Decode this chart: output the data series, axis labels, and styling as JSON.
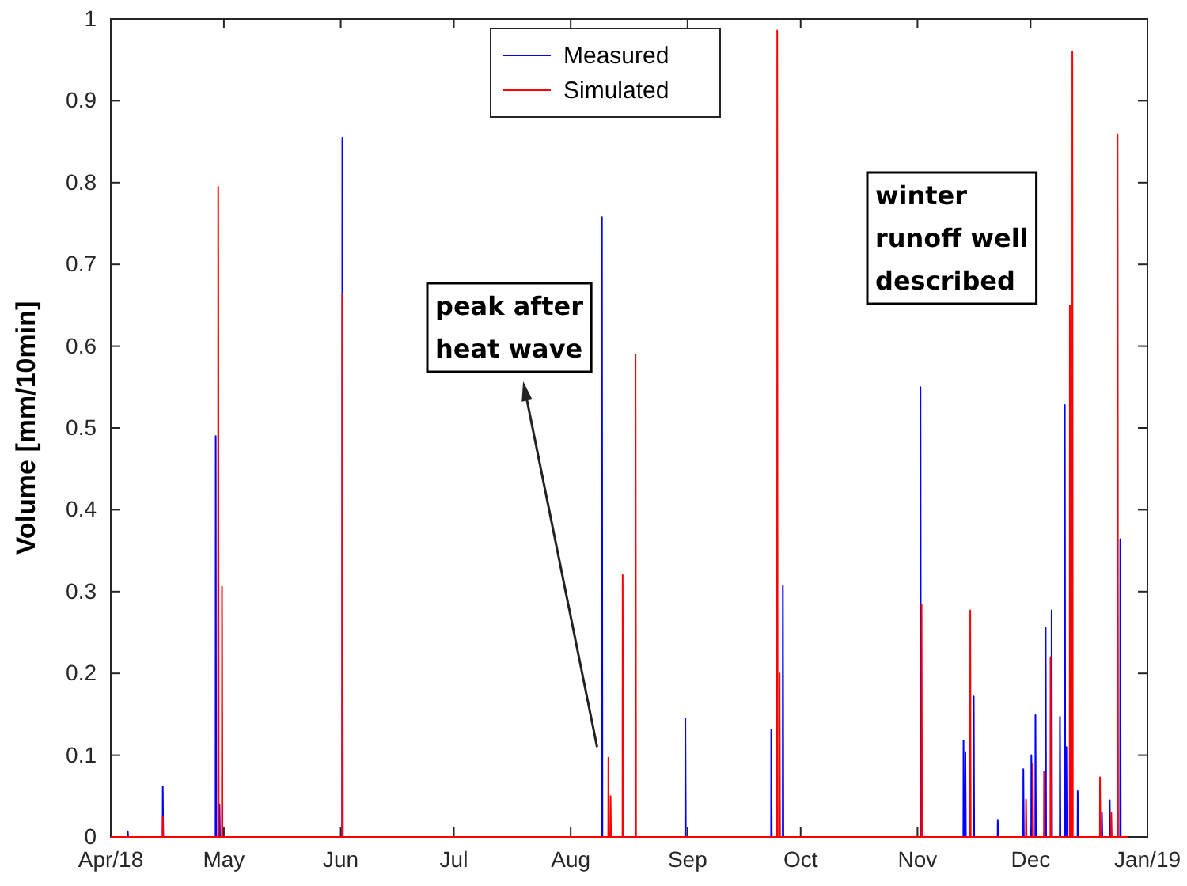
{
  "chart_data": {
    "type": "line",
    "ylabel": "Volume [mm/10min]",
    "xlim": [
      "2018-04-01",
      "2019-01-01"
    ],
    "xticks": [
      {
        "value": "2018-04-01",
        "label": "Apr/18"
      },
      {
        "value": "2018-05-01",
        "label": "May"
      },
      {
        "value": "2018-06-01",
        "label": "Jun"
      },
      {
        "value": "2018-07-01",
        "label": "Jul"
      },
      {
        "value": "2018-08-01",
        "label": "Aug"
      },
      {
        "value": "2018-09-01",
        "label": "Sep"
      },
      {
        "value": "2018-10-01",
        "label": "Oct"
      },
      {
        "value": "2018-11-01",
        "label": "Nov"
      },
      {
        "value": "2018-12-01",
        "label": "Dec"
      },
      {
        "value": "2019-01-01",
        "label": "Jan/19"
      }
    ],
    "ylim": [
      0,
      1
    ],
    "yticks": [
      0,
      0.1,
      0.2,
      0.3,
      0.4,
      0.5,
      0.6,
      0.7,
      0.8,
      0.9,
      1
    ],
    "grid": false,
    "legend": "top",
    "line_style": "solid",
    "marker": "none",
    "series": [
      {
        "name": "Measured",
        "color": "#0000ff",
        "x": [
          "2018-04-01T00:00",
          "2018-04-05T11:00",
          "2018-04-05T12:00",
          "2018-04-05T15:00",
          "2018-04-14T18:00",
          "2018-04-14T19:00",
          "2018-04-14T22:00",
          "2018-04-28T19:00",
          "2018-04-28T20:00",
          "2018-04-28T23:00",
          "2018-04-29T19:00",
          "2018-04-29T20:00",
          "2018-04-29T23:00",
          "2018-06-01T09:00",
          "2018-06-01T10:00",
          "2018-06-01T13:00",
          "2018-08-09T06:00",
          "2018-08-09T07:00",
          "2018-08-09T10:00",
          "2018-08-31T09:00",
          "2018-08-31T10:00",
          "2018-08-31T13:00",
          "2018-09-23T04:00",
          "2018-09-23T05:00",
          "2018-09-23T08:00",
          "2018-09-26T06:00",
          "2018-09-26T07:00",
          "2018-09-26T10:00",
          "2018-11-01T18:00",
          "2018-11-01T19:00",
          "2018-11-01T22:00",
          "2018-11-13T04:00",
          "2018-11-13T05:00",
          "2018-11-13T08:00",
          "2018-11-13T16:00",
          "2018-11-13T17:00",
          "2018-11-13T20:00",
          "2018-11-15T21:00",
          "2018-11-15T22:00",
          "2018-11-16T01:00",
          "2018-11-22T06:00",
          "2018-11-22T07:00",
          "2018-11-22T10:00",
          "2018-11-29T01:00",
          "2018-11-29T02:00",
          "2018-11-29T05:00",
          "2018-12-01T04:00",
          "2018-12-01T05:00",
          "2018-12-01T08:00",
          "2018-12-02T06:00",
          "2018-12-02T07:00",
          "2018-12-02T10:00",
          "2018-12-04T23:00",
          "2018-12-05T00:00",
          "2018-12-05T03:00",
          "2018-12-06T13:00",
          "2018-12-06T14:00",
          "2018-12-06T17:00",
          "2018-12-08T18:00",
          "2018-12-08T19:00",
          "2018-12-08T22:00",
          "2018-12-10T01:00",
          "2018-12-10T02:00",
          "2018-12-10T05:00",
          "2018-12-10T11:00",
          "2018-12-10T12:00",
          "2018-12-10T15:00",
          "2018-12-11T18:00",
          "2018-12-11T19:00",
          "2018-12-11T22:00",
          "2018-12-13T11:00",
          "2018-12-13T12:00",
          "2018-12-13T15:00",
          "2018-12-19T21:00",
          "2018-12-19T22:00",
          "2018-12-20T01:00",
          "2018-12-21T23:00",
          "2018-12-22T00:00",
          "2018-12-22T03:00",
          "2018-12-24T18:00",
          "2018-12-24T19:00",
          "2018-12-24T22:00",
          "2018-12-27T00:00"
        ],
        "values": [
          0,
          0,
          0.007,
          0,
          0,
          0.062,
          0,
          0,
          0.49,
          0,
          0,
          0.04,
          0,
          0,
          0.855,
          0,
          0,
          0.758,
          0,
          0,
          0.145,
          0,
          0,
          0.131,
          0,
          0,
          0.307,
          0,
          0,
          0.55,
          0,
          0,
          0.118,
          0,
          0,
          0.104,
          0,
          0,
          0.172,
          0,
          0,
          0.021,
          0,
          0,
          0.083,
          0,
          0,
          0.1,
          0,
          0,
          0.149,
          0,
          0,
          0.256,
          0,
          0,
          0.277,
          0,
          0,
          0.147,
          0,
          0,
          0.528,
          0,
          0,
          0.11,
          0,
          0,
          0.244,
          0,
          0,
          0.056,
          0,
          0,
          0.03,
          0,
          0,
          0.045,
          0,
          0,
          0.364,
          0,
          0
        ]
      },
      {
        "name": "Simulated",
        "color": "#ff0000",
        "x": [
          "2018-04-01T00:00",
          "2018-04-14T18:00",
          "2018-04-14T19:00",
          "2018-04-14T22:00",
          "2018-04-29T11:00",
          "2018-04-29T12:00",
          "2018-04-29T15:00",
          "2018-04-30T11:00",
          "2018-04-30T12:00",
          "2018-04-30T15:00",
          "2018-06-01T09:00",
          "2018-06-01T10:00",
          "2018-06-01T13:00",
          "2018-08-10T23:00",
          "2018-08-11T00:00",
          "2018-08-11T03:00",
          "2018-08-11T13:00",
          "2018-08-11T14:00",
          "2018-08-11T17:00",
          "2018-08-14T18:00",
          "2018-08-14T19:00",
          "2018-08-14T22:00",
          "2018-08-18T04:00",
          "2018-08-18T05:00",
          "2018-08-18T08:00",
          "2018-09-24T18:00",
          "2018-09-24T19:00",
          "2018-09-24T22:00",
          "2018-09-25T09:00",
          "2018-09-25T10:00",
          "2018-09-25T13:00",
          "2018-11-02T01:00",
          "2018-11-02T02:00",
          "2018-11-02T05:00",
          "2018-11-14T23:00",
          "2018-11-15T00:00",
          "2018-11-15T03:00",
          "2018-11-29T18:00",
          "2018-11-29T19:00",
          "2018-11-29T22:00",
          "2018-12-01T13:00",
          "2018-12-01T14:00",
          "2018-12-01T17:00",
          "2018-12-04T13:00",
          "2018-12-04T14:00",
          "2018-12-04T17:00",
          "2018-12-06T06:00",
          "2018-12-06T07:00",
          "2018-12-06T10:00",
          "2018-12-11T09:00",
          "2018-12-11T10:00",
          "2018-12-11T13:00",
          "2018-12-12T01:00",
          "2018-12-12T02:00",
          "2018-12-12T05:00",
          "2018-12-19T09:00",
          "2018-12-19T10:00",
          "2018-12-19T13:00",
          "2018-12-22T09:00",
          "2018-12-22T10:00",
          "2018-12-22T13:00",
          "2018-12-24T01:00",
          "2018-12-24T02:00",
          "2018-12-24T05:00",
          "2018-12-27T00:00"
        ],
        "values": [
          0,
          0,
          0.025,
          0,
          0,
          0.795,
          0,
          0,
          0.306,
          0,
          0,
          0.663,
          0,
          0,
          0.097,
          0,
          0,
          0.05,
          0,
          0,
          0.32,
          0,
          0,
          0.59,
          0,
          0,
          0.986,
          0,
          0,
          0.2,
          0,
          0,
          0.284,
          0,
          0,
          0.277,
          0,
          0,
          0.046,
          0,
          0,
          0.09,
          0,
          0,
          0.08,
          0,
          0,
          0.22,
          0,
          0,
          0.65,
          0,
          0,
          0.96,
          0,
          0,
          0.073,
          0,
          0,
          0.03,
          0,
          0,
          0.859,
          0,
          0
        ]
      }
    ],
    "annotations": [
      {
        "text": "peak after\nheat wave",
        "x": "2018-08-08",
        "y": 0.11
      },
      "winter\nrunoff well\ndescribed"
    ]
  }
}
